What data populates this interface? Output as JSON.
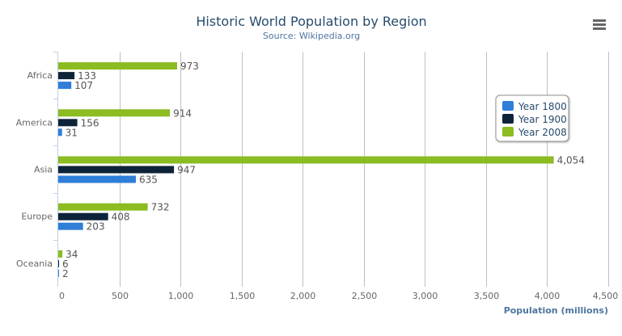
{
  "chart_data": {
    "type": "bar",
    "orientation": "horizontal",
    "title": "Historic World Population by Region",
    "subtitle": "Source: Wikipedia.org",
    "categories": [
      "Africa",
      "America",
      "Asia",
      "Europe",
      "Oceania"
    ],
    "series": [
      {
        "name": "Year 1800",
        "color": "#2f7ed8",
        "values": [
          107,
          31,
          635,
          203,
          2
        ]
      },
      {
        "name": "Year 1900",
        "color": "#0d233a",
        "values": [
          133,
          156,
          947,
          408,
          6
        ]
      },
      {
        "name": "Year 2008",
        "color": "#8bbc21",
        "values": [
          973,
          914,
          4054,
          732,
          34
        ]
      }
    ],
    "xlabel": "",
    "ylabel": "Population (millions)",
    "ylim": [
      0,
      4500
    ],
    "ticks": [
      "0",
      "500",
      "1,000",
      "1,500",
      "2,000",
      "2,500",
      "3,000",
      "3,500",
      "4,000",
      "4,500"
    ],
    "grid": true,
    "data_labels": true,
    "legend_position": "right",
    "menu_icon": "hamburger-menu-icon"
  }
}
